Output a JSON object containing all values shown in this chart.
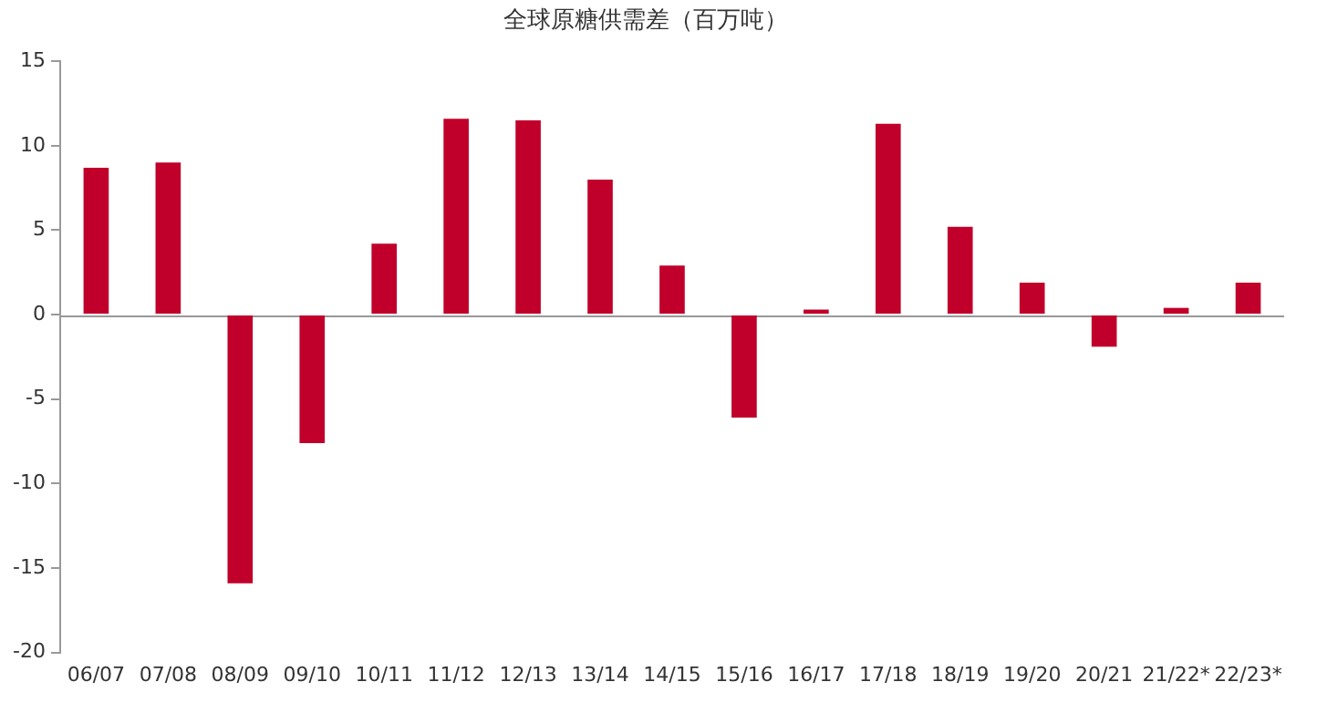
{
  "chart_data": {
    "type": "bar",
    "title": "全球原糖供需差（百万吨）",
    "categories": [
      "06/07",
      "07/08",
      "08/09",
      "09/10",
      "10/11",
      "11/12",
      "12/13",
      "13/14",
      "14/15",
      "15/16",
      "16/17",
      "17/18",
      "18/19",
      "19/20",
      "20/21",
      "21/22*",
      "22/23*"
    ],
    "values": [
      8.7,
      9.0,
      -15.9,
      -7.6,
      4.2,
      11.6,
      11.5,
      8.0,
      2.9,
      -6.1,
      0.3,
      11.3,
      5.2,
      1.9,
      -1.9,
      0.4,
      1.9
    ],
    "color": "#c0002a",
    "ylim": [
      -20,
      15
    ],
    "yticks": [
      -20,
      -15,
      -10,
      -5,
      0,
      5,
      10,
      15
    ],
    "legend": false
  }
}
